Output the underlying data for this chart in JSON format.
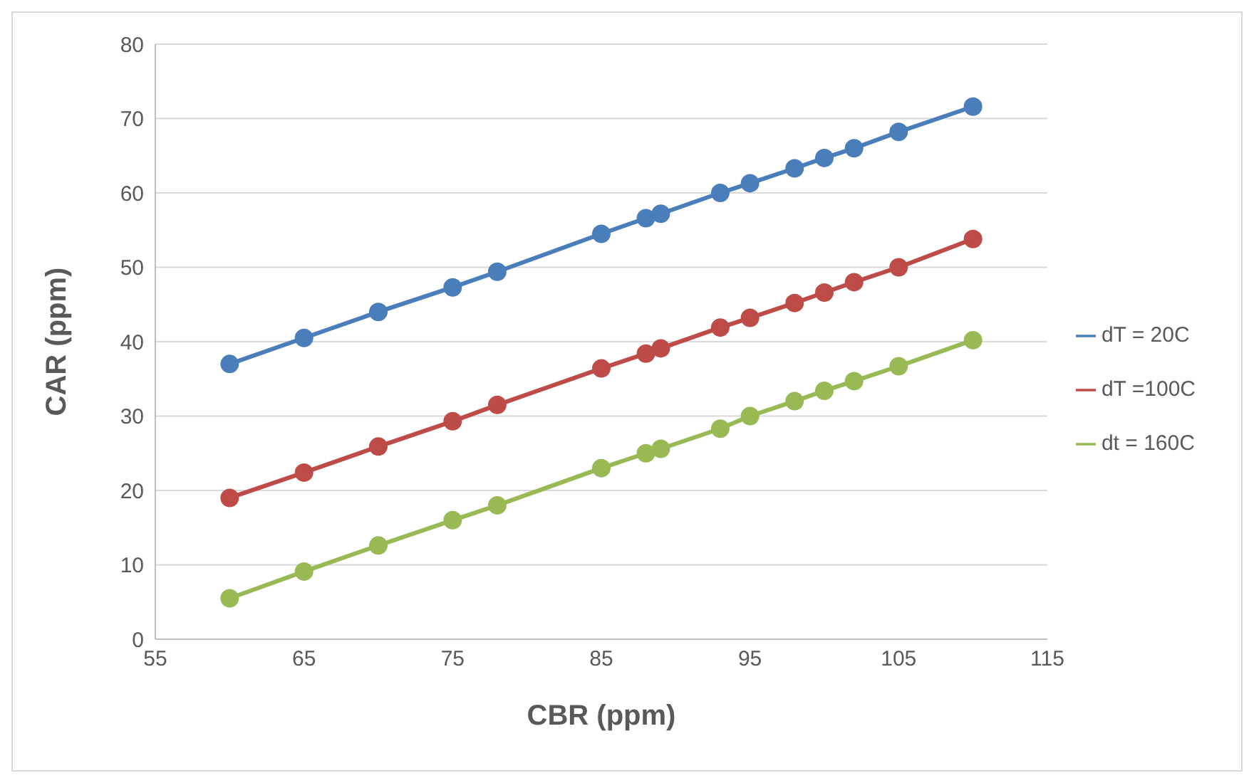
{
  "chart_data": {
    "type": "line",
    "xlabel": "CBR (ppm)",
    "ylabel": "CAR (ppm)",
    "x": [
      60,
      65,
      70,
      75,
      78,
      85,
      88,
      89,
      93,
      95,
      98,
      100,
      102,
      105,
      110
    ],
    "series": [
      {
        "name": "dT = 20C",
        "color": "#4a7ebb",
        "values": [
          37,
          40.5,
          44,
          47.3,
          49.4,
          54.5,
          56.6,
          57.2,
          60,
          61.3,
          63.3,
          64.7,
          66,
          68.2,
          71.6
        ]
      },
      {
        "name": "dT =100C",
        "color": "#be4b48",
        "values": [
          19,
          22.4,
          25.9,
          29.3,
          31.5,
          36.4,
          38.4,
          39.1,
          41.9,
          43.2,
          45.2,
          46.6,
          48,
          50,
          53.8
        ]
      },
      {
        "name": "dt = 160C",
        "color": "#98b954",
        "values": [
          5.5,
          9.1,
          12.6,
          16,
          18,
          23,
          25,
          25.6,
          28.3,
          30,
          32,
          33.4,
          34.7,
          36.7,
          40.2
        ]
      }
    ],
    "xlim": [
      55,
      115
    ],
    "xticks": [
      55,
      65,
      75,
      85,
      95,
      105,
      115
    ],
    "ylim": [
      0,
      80
    ],
    "yticks": [
      0,
      10,
      20,
      30,
      40,
      50,
      60,
      70,
      80
    ],
    "grid": "y",
    "legend": "right",
    "marker": "circle",
    "line_style": "solid"
  }
}
